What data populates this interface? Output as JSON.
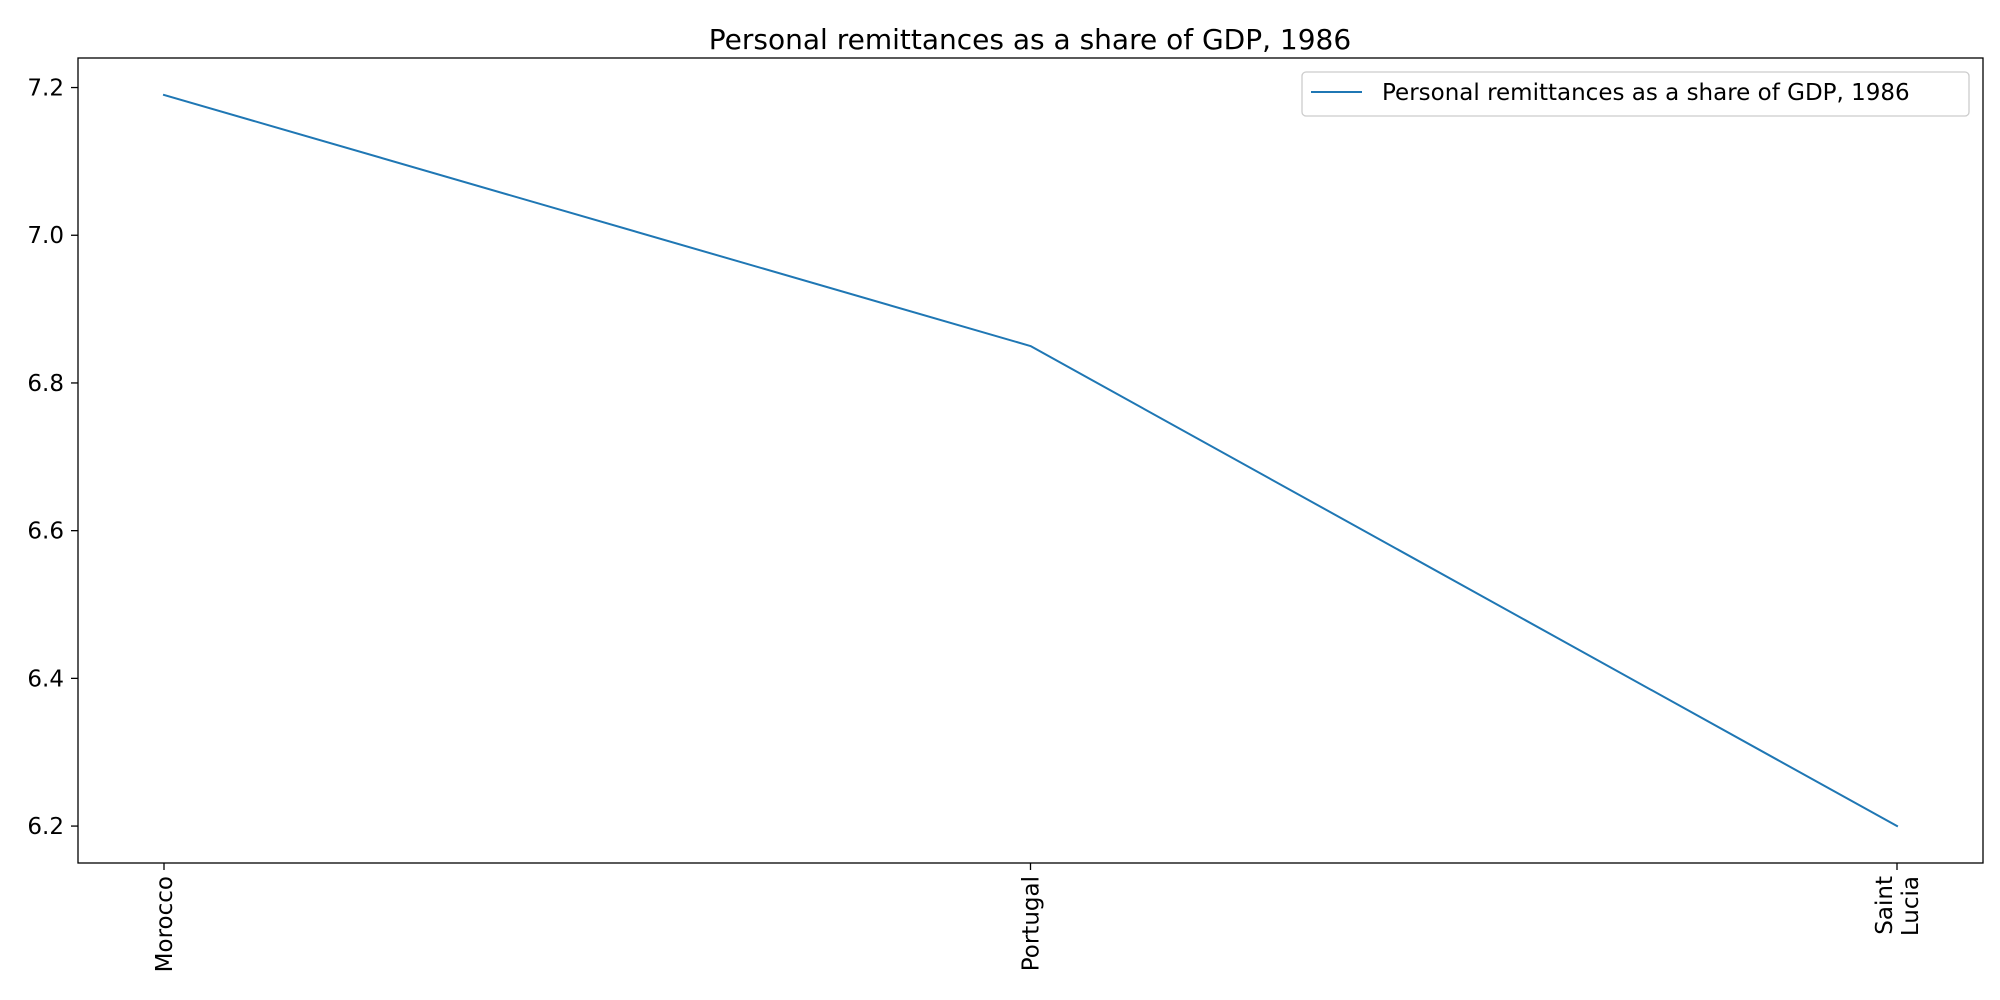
{
  "chart_data": {
    "type": "line",
    "title": "Personal remittances as a share of GDP, 1986",
    "xlabel": "",
    "ylabel": "",
    "categories": [
      "Morocco",
      "Portugal",
      "Saint Lucia"
    ],
    "category_display": [
      [
        "Morocco"
      ],
      [
        "Portugal"
      ],
      [
        "Saint",
        "Lucia"
      ]
    ],
    "series": [
      {
        "name": "Personal remittances as a share of GDP, 1986",
        "values": [
          7.19,
          6.85,
          6.2
        ],
        "color": "#1f77b4"
      }
    ],
    "ylim": [
      6.15,
      7.24
    ],
    "yticks": [
      6.2,
      6.4,
      6.6,
      6.8,
      7.0,
      7.2
    ],
    "ytick_labels": [
      "6.2",
      "6.4",
      "6.6",
      "6.8",
      "7.0",
      "7.2"
    ],
    "grid": false,
    "legend": "top-right"
  }
}
